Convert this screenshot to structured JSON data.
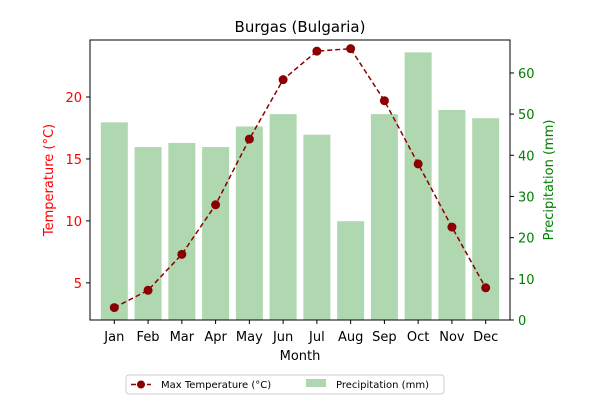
{
  "chart_data": {
    "type": "bar+line",
    "title": "Burgas (Bulgaria)",
    "xlabel": "Month",
    "categories": [
      "Jan",
      "Feb",
      "Mar",
      "Apr",
      "May",
      "Jun",
      "Jul",
      "Aug",
      "Sep",
      "Oct",
      "Nov",
      "Dec"
    ],
    "temperature": {
      "name": "Max Temperature (°C)",
      "axis_label": "Temperature (°C)",
      "values": [
        3.0,
        4.4,
        7.3,
        11.3,
        16.6,
        21.4,
        23.7,
        23.9,
        19.7,
        14.6,
        9.5,
        4.6
      ],
      "ylim": [
        2.0,
        24.6
      ],
      "ticks": [
        5,
        10,
        15,
        20
      ],
      "color": "#8b0000",
      "axis_color": "#ff0000"
    },
    "precipitation": {
      "name": "Precipitation (mm)",
      "axis_label": "Precipitation (mm)",
      "values": [
        48,
        42,
        43,
        42,
        47,
        50,
        45,
        24,
        50,
        65,
        51,
        49
      ],
      "ylim": [
        0,
        68
      ],
      "ticks": [
        0,
        10,
        20,
        30,
        40,
        50,
        60
      ],
      "color": "#b0d8b0",
      "axis_color": "#008000"
    },
    "legend_position": "bottom-center"
  }
}
